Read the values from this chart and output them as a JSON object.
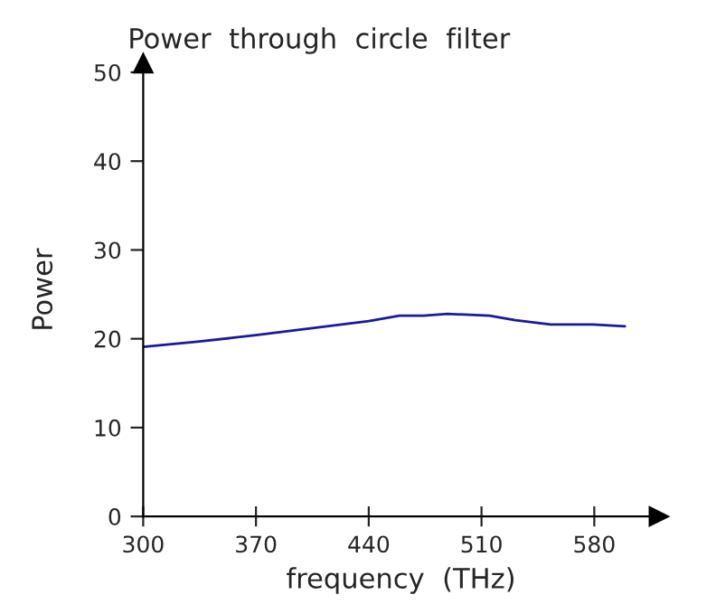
{
  "chart_data": {
    "type": "line",
    "title": "Power  through  circle  filter",
    "xlabel": "frequency  (THz)",
    "ylabel": "Power",
    "x": [
      300,
      335,
      370,
      405,
      440,
      459,
      474,
      489,
      515,
      531,
      553,
      579,
      599
    ],
    "series": [
      {
        "color": "#1a1a9c",
        "values": [
          19.1,
          19.7,
          20.4,
          21.2,
          22.0,
          22.6,
          22.6,
          22.8,
          22.6,
          22.1,
          21.6,
          21.6,
          21.4
        ]
      }
    ],
    "xlim": [
      300,
      620
    ],
    "ylim": [
      0,
      51
    ],
    "xticks": [
      300,
      370,
      440,
      510,
      580
    ],
    "yticks": [
      0,
      10,
      20,
      30,
      40,
      50
    ],
    "grid": false,
    "marker": "none",
    "line_style": "solid"
  }
}
